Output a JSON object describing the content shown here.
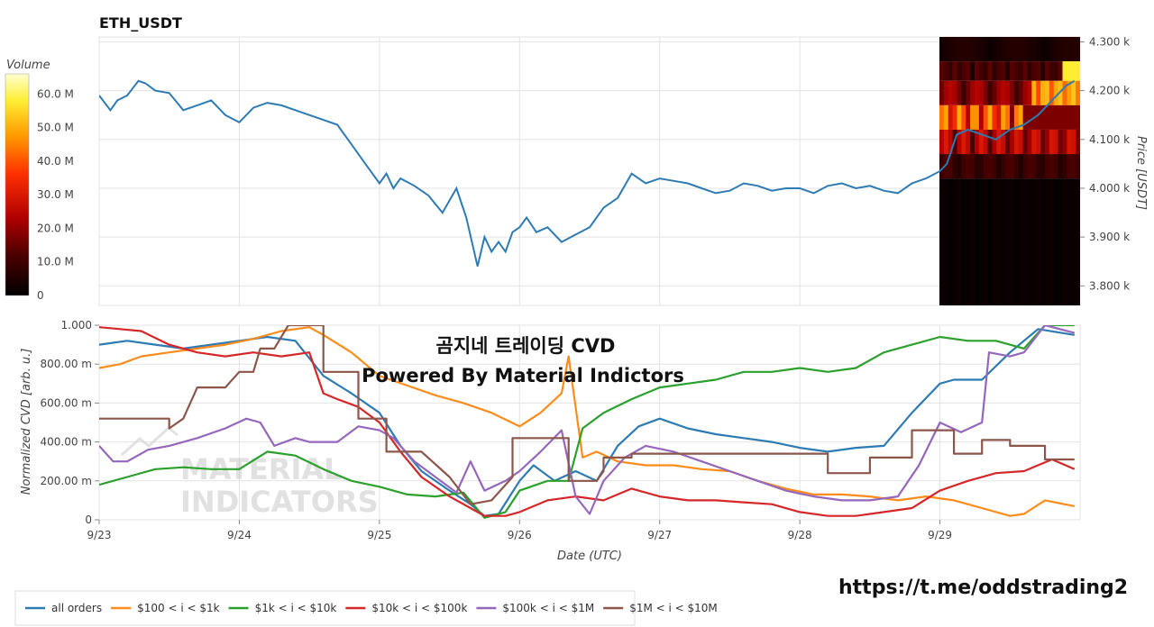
{
  "title": "ETH_USDT",
  "overlay": {
    "line1": "곰지네 트레이딩 CVD",
    "line2": "Powered By Material Indictors"
  },
  "watermark": {
    "line1": "MATERIAL",
    "line2": "INDICATORS"
  },
  "url": "https://t.me/oddstrading2",
  "colors": {
    "price": "#2e7bb4",
    "all orders": "#2e7bb4",
    "$100 < i < $1k": "#ff8c1a",
    "$1k < i < $10k": "#2ca02c",
    "$10k < i < $100k": "#d62728",
    "$100k < i < $1M": "#9467bd",
    "$1M < i < $10M": "#8c564b",
    "grid": "#e3e3e3"
  },
  "chart_data": [
    {
      "type": "line",
      "title": "ETH_USDT",
      "ylabel": "Price [USDT]",
      "ylim": [
        3760,
        4310
      ],
      "yticks": [
        3800,
        3900,
        4000,
        4100,
        4200,
        4300
      ],
      "ytick_labels": [
        "3.800 k",
        "3.900 k",
        "4.000 k",
        "4.100 k",
        "4.200 k",
        "4.300 k"
      ],
      "x_range": [
        0,
        7.0
      ],
      "x_categories": [
        "9/23",
        "9/24",
        "9/25",
        "9/26",
        "9/27",
        "9/28",
        "9/29"
      ],
      "series": [
        {
          "x": [
            0,
            0.08,
            0.13,
            0.2,
            0.28,
            0.33,
            0.4,
            0.5,
            0.6,
            0.7,
            0.8,
            0.9,
            1.0,
            1.1,
            1.2,
            1.3,
            1.4,
            1.5,
            1.6,
            1.7,
            1.8,
            1.9,
            2.0,
            2.05,
            2.1,
            2.15,
            2.25,
            2.35,
            2.45,
            2.55,
            2.62,
            2.7,
            2.75,
            2.8,
            2.85,
            2.9,
            2.95,
            3.0,
            3.05,
            3.12,
            3.2,
            3.3,
            3.4,
            3.5,
            3.6,
            3.7,
            3.8,
            3.9,
            4.0,
            4.1,
            4.2,
            4.3,
            4.4,
            4.5,
            4.6,
            4.7,
            4.8,
            4.9,
            5.0,
            5.1,
            5.2,
            5.3,
            5.4,
            5.5,
            5.6,
            5.7,
            5.8,
            5.9,
            6.0,
            6.05,
            6.12,
            6.2,
            6.3,
            6.4,
            6.5,
            6.6,
            6.7,
            6.8,
            6.9,
            6.96
          ],
          "y": [
            4190,
            4160,
            4180,
            4190,
            4220,
            4215,
            4200,
            4195,
            4160,
            4170,
            4180,
            4150,
            4135,
            4165,
            4175,
            4170,
            4160,
            4150,
            4140,
            4130,
            4090,
            4050,
            4010,
            4030,
            4000,
            4020,
            4005,
            3985,
            3950,
            4000,
            3940,
            3840,
            3900,
            3870,
            3890,
            3870,
            3910,
            3920,
            3940,
            3910,
            3920,
            3890,
            3905,
            3920,
            3960,
            3980,
            4030,
            4010,
            4020,
            4015,
            4010,
            4000,
            3990,
            3995,
            4010,
            4005,
            3995,
            4000,
            4000,
            3990,
            4005,
            4010,
            4000,
            4005,
            3995,
            3990,
            4010,
            4020,
            4035,
            4050,
            4110,
            4120,
            4110,
            4100,
            4120,
            4130,
            4150,
            4180,
            4210,
            4220
          ]
        }
      ],
      "heatmap_colorbar": {
        "label": "Volume",
        "ticks": [
          "0",
          "10.0 M",
          "20.0 M",
          "30.0 M",
          "40.0 M",
          "50.0 M",
          "60.0 M"
        ],
        "tick_values": [
          0,
          10,
          20,
          30,
          40,
          50,
          60
        ],
        "max": 66
      },
      "heatmap": {
        "price_bands": [
          {
            "p0": 4260,
            "p1": 4310,
            "v": 6
          },
          {
            "p0": 4220,
            "p1": 4260,
            "v": 14
          },
          {
            "p0": 4170,
            "p1": 4220,
            "v": 24
          },
          {
            "p0": 4120,
            "p1": 4170,
            "v": 50
          },
          {
            "p0": 4070,
            "p1": 4120,
            "v": 30
          },
          {
            "p0": 4020,
            "p1": 4070,
            "v": 12
          },
          {
            "p0": 3760,
            "p1": 4020,
            "v": 2
          }
        ]
      }
    },
    {
      "type": "line",
      "xlabel": "Date (UTC)",
      "ylabel": "Normalized CVD [arb. u.]",
      "ylim": [
        0,
        1.0
      ],
      "yticks": [
        0,
        0.2,
        0.4,
        0.6,
        0.8,
        1.0
      ],
      "ytick_labels": [
        "0",
        "200.00 m",
        "400.00 m",
        "600.00 m",
        "800.00 m",
        "1.000"
      ],
      "x_range": [
        0,
        7.0
      ],
      "x_categories": [
        "9/23",
        "9/24",
        "9/25",
        "9/26",
        "9/27",
        "9/28",
        "9/29"
      ],
      "series": [
        {
          "name": "all orders",
          "x": [
            0,
            0.2,
            0.4,
            0.6,
            0.8,
            1.0,
            1.2,
            1.4,
            1.6,
            1.8,
            2.0,
            2.15,
            2.3,
            2.5,
            2.65,
            2.75,
            2.85,
            3.0,
            3.1,
            3.25,
            3.4,
            3.55,
            3.7,
            3.85,
            4.0,
            4.2,
            4.4,
            4.6,
            4.8,
            5.0,
            5.2,
            5.4,
            5.6,
            5.8,
            6.0,
            6.1,
            6.3,
            6.5,
            6.7,
            6.96
          ],
          "y": [
            0.9,
            0.92,
            0.9,
            0.88,
            0.9,
            0.92,
            0.94,
            0.92,
            0.74,
            0.65,
            0.55,
            0.38,
            0.25,
            0.15,
            0.08,
            0.02,
            0.03,
            0.2,
            0.28,
            0.2,
            0.25,
            0.2,
            0.38,
            0.48,
            0.52,
            0.47,
            0.44,
            0.42,
            0.4,
            0.37,
            0.35,
            0.37,
            0.38,
            0.55,
            0.7,
            0.72,
            0.72,
            0.86,
            0.98,
            0.95
          ]
        },
        {
          "name": "$100 < i < $1k",
          "x": [
            0,
            0.15,
            0.3,
            0.5,
            0.7,
            0.9,
            1.1,
            1.3,
            1.5,
            1.6,
            1.8,
            2.0,
            2.2,
            2.4,
            2.6,
            2.8,
            3.0,
            3.15,
            3.3,
            3.35,
            3.45,
            3.55,
            3.7,
            3.9,
            4.1,
            4.3,
            4.5,
            4.7,
            4.9,
            5.1,
            5.3,
            5.5,
            5.7,
            5.9,
            6.1,
            6.3,
            6.5,
            6.6,
            6.75,
            6.96
          ],
          "y": [
            0.78,
            0.8,
            0.84,
            0.86,
            0.88,
            0.9,
            0.93,
            0.97,
            0.99,
            0.95,
            0.86,
            0.74,
            0.69,
            0.64,
            0.6,
            0.55,
            0.48,
            0.55,
            0.65,
            0.84,
            0.32,
            0.35,
            0.3,
            0.28,
            0.28,
            0.26,
            0.25,
            0.2,
            0.16,
            0.13,
            0.13,
            0.12,
            0.1,
            0.12,
            0.1,
            0.06,
            0.02,
            0.03,
            0.1,
            0.07
          ]
        },
        {
          "name": "$1k < i < $10k",
          "x": [
            0,
            0.2,
            0.4,
            0.6,
            0.8,
            1.0,
            1.2,
            1.4,
            1.6,
            1.8,
            2.0,
            2.2,
            2.4,
            2.6,
            2.75,
            2.9,
            3.0,
            3.2,
            3.35,
            3.45,
            3.6,
            3.8,
            4.0,
            4.2,
            4.4,
            4.6,
            4.8,
            5.0,
            5.2,
            5.4,
            5.6,
            5.8,
            6.0,
            6.2,
            6.4,
            6.6,
            6.75,
            6.96
          ],
          "y": [
            0.18,
            0.22,
            0.26,
            0.27,
            0.26,
            0.26,
            0.35,
            0.33,
            0.26,
            0.2,
            0.17,
            0.13,
            0.12,
            0.14,
            0.01,
            0.04,
            0.15,
            0.2,
            0.2,
            0.47,
            0.55,
            0.62,
            0.68,
            0.7,
            0.72,
            0.76,
            0.76,
            0.78,
            0.76,
            0.78,
            0.86,
            0.9,
            0.94,
            0.92,
            0.92,
            0.88,
            1.0,
            1.0
          ]
        },
        {
          "name": "$10k < i < $100k",
          "x": [
            0,
            0.15,
            0.3,
            0.5,
            0.7,
            0.9,
            1.1,
            1.3,
            1.5,
            1.6,
            1.7,
            1.85,
            2.0,
            2.15,
            2.3,
            2.5,
            2.65,
            2.75,
            2.9,
            3.0,
            3.2,
            3.4,
            3.6,
            3.8,
            4.0,
            4.2,
            4.4,
            4.6,
            4.8,
            5.0,
            5.2,
            5.4,
            5.6,
            5.8,
            6.0,
            6.2,
            6.4,
            6.6,
            6.8,
            6.96
          ],
          "y": [
            0.99,
            0.98,
            0.97,
            0.9,
            0.86,
            0.84,
            0.86,
            0.84,
            0.86,
            0.65,
            0.62,
            0.58,
            0.5,
            0.35,
            0.22,
            0.12,
            0.06,
            0.02,
            0.02,
            0.04,
            0.1,
            0.12,
            0.1,
            0.16,
            0.12,
            0.1,
            0.1,
            0.09,
            0.08,
            0.04,
            0.02,
            0.02,
            0.04,
            0.06,
            0.15,
            0.2,
            0.24,
            0.25,
            0.31,
            0.26
          ]
        },
        {
          "name": "$100k < i < $1M",
          "x": [
            0,
            0.1,
            0.2,
            0.35,
            0.5,
            0.7,
            0.9,
            1.05,
            1.15,
            1.25,
            1.4,
            1.5,
            1.7,
            1.85,
            2.0,
            2.1,
            2.25,
            2.4,
            2.55,
            2.65,
            2.75,
            2.9,
            3.0,
            3.15,
            3.3,
            3.4,
            3.5,
            3.6,
            3.75,
            3.9,
            4.1,
            4.3,
            4.5,
            4.7,
            4.9,
            5.1,
            5.3,
            5.5,
            5.7,
            5.85,
            6.0,
            6.15,
            6.3,
            6.35,
            6.5,
            6.6,
            6.75,
            6.96
          ],
          "y": [
            0.38,
            0.3,
            0.3,
            0.36,
            0.38,
            0.42,
            0.47,
            0.52,
            0.5,
            0.38,
            0.42,
            0.4,
            0.4,
            0.48,
            0.46,
            0.42,
            0.3,
            0.22,
            0.14,
            0.3,
            0.15,
            0.2,
            0.25,
            0.35,
            0.46,
            0.12,
            0.03,
            0.2,
            0.32,
            0.38,
            0.35,
            0.3,
            0.25,
            0.2,
            0.15,
            0.12,
            0.1,
            0.1,
            0.12,
            0.28,
            0.5,
            0.45,
            0.5,
            0.86,
            0.84,
            0.86,
            1.0,
            0.96
          ]
        },
        {
          "name": "$1M < i < $10M",
          "x": [
            0,
            0.5,
            0.5,
            0.6,
            0.7,
            0.9,
            1.0,
            1.1,
            1.15,
            1.25,
            1.35,
            1.6,
            1.6,
            1.85,
            1.85,
            2.05,
            2.05,
            2.3,
            2.5,
            2.65,
            2.8,
            2.95,
            2.95,
            3.35,
            3.35,
            3.55,
            3.6,
            3.6,
            3.8,
            3.8,
            5.2,
            5.2,
            5.5,
            5.5,
            5.8,
            5.8,
            6.1,
            6.1,
            6.3,
            6.3,
            6.5,
            6.5,
            6.75,
            6.75,
            6.96
          ],
          "y": [
            0.52,
            0.52,
            0.47,
            0.52,
            0.68,
            0.68,
            0.76,
            0.76,
            0.88,
            0.88,
            1.0,
            1.0,
            0.76,
            0.76,
            0.52,
            0.52,
            0.35,
            0.35,
            0.22,
            0.08,
            0.1,
            0.22,
            0.42,
            0.42,
            0.2,
            0.2,
            0.25,
            0.32,
            0.32,
            0.34,
            0.34,
            0.24,
            0.24,
            0.32,
            0.32,
            0.46,
            0.46,
            0.34,
            0.34,
            0.41,
            0.41,
            0.38,
            0.38,
            0.31,
            0.31
          ]
        }
      ]
    }
  ]
}
